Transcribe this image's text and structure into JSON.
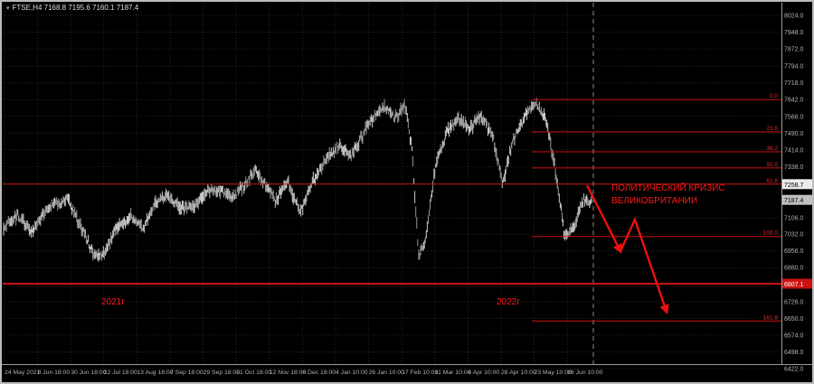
{
  "window": {
    "symbol_info": "FTSE,H4  7168.8 7195.6 7160.1 7187.4"
  },
  "icons": {
    "symbol_marker": "▾"
  },
  "annotations": {
    "year_left": "2021г",
    "year_right": "2022г",
    "crisis_line1": "ПОЛИТИЧЕСКИЙ КРИЗИС",
    "crisis_line2": "ВЕЛИКОБРИТАНИИ"
  },
  "colors": {
    "background": "#000000",
    "frame": "#b9bcbe",
    "grid": "#262626",
    "candle_light": "#e2e2e2",
    "candle_dark": "#a8a8a8",
    "axis_text": "#b2b2b2",
    "fib_line": "#cc1111",
    "fib_label": "#ee2222",
    "annotation_red": "#ff1a1a",
    "arrow": "#ee0f0f",
    "current_price_box": "#c0c0c0",
    "fib_price_box": "#ececec",
    "support_box": "#cc1111"
  },
  "chart_data": {
    "type": "candlestick",
    "symbol": "FTSE",
    "timeframe": "H4",
    "title": "FTSE,H4",
    "ohlc": {
      "open": 7168.8,
      "high": 7195.6,
      "low": 7160.1,
      "close": 7187.4
    },
    "current_price": 7187.4,
    "y_axis": {
      "min": 6422.0,
      "max": 8024.0,
      "labels": [
        "8024.0",
        "7948.0",
        "7872.0",
        "7794.0",
        "7718.0",
        "7642.0",
        "7566.0",
        "7490.0",
        "7414.0",
        "7338.0",
        "7262.0",
        "7106.0",
        "7032.0",
        "6956.0",
        "6880.0",
        "6726.0",
        "6650.0",
        "6574.0",
        "6498.0",
        "6422.0"
      ]
    },
    "x_axis": {
      "labels": [
        "24 May 2021",
        "8 Jun 18:00",
        "30 Jun 18:00",
        "22 Jul 18:00",
        "13 Aug 18:00",
        "7 Sep 18:00",
        "29 Sep 18:00",
        "21 Oct 18:00",
        "12 Nov 18:00",
        "6 Dec 18:00",
        "4 Jan 10:00",
        "26 Jan 10:00",
        "17 Feb 10:00",
        "11 Mar 10:00",
        "4 Apr 10:00",
        "28 Apr 10:00",
        "23 May 10:00",
        "16 Jun 10:00"
      ]
    },
    "price_path": [
      [
        0.0,
        7060
      ],
      [
        0.025,
        7115
      ],
      [
        0.048,
        7040
      ],
      [
        0.078,
        7160
      ],
      [
        0.109,
        7190
      ],
      [
        0.132,
        7060
      ],
      [
        0.155,
        6930
      ],
      [
        0.171,
        6945
      ],
      [
        0.194,
        7070
      ],
      [
        0.217,
        7110
      ],
      [
        0.237,
        7060
      ],
      [
        0.258,
        7170
      ],
      [
        0.278,
        7210
      ],
      [
        0.302,
        7150
      ],
      [
        0.325,
        7155
      ],
      [
        0.348,
        7230
      ],
      [
        0.371,
        7225
      ],
      [
        0.391,
        7200
      ],
      [
        0.412,
        7265
      ],
      [
        0.429,
        7320
      ],
      [
        0.448,
        7250
      ],
      [
        0.463,
        7180
      ],
      [
        0.483,
        7270
      ],
      [
        0.505,
        7130
      ],
      [
        0.525,
        7270
      ],
      [
        0.548,
        7370
      ],
      [
        0.571,
        7440
      ],
      [
        0.591,
        7390
      ],
      [
        0.609,
        7470
      ],
      [
        0.628,
        7560
      ],
      [
        0.648,
        7610
      ],
      [
        0.666,
        7560
      ],
      [
        0.683,
        7620
      ],
      [
        0.695,
        7400
      ],
      [
        0.706,
        6930
      ],
      [
        0.717,
        7000
      ],
      [
        0.735,
        7350
      ],
      [
        0.755,
        7500
      ],
      [
        0.775,
        7560
      ],
      [
        0.794,
        7510
      ],
      [
        0.812,
        7570
      ],
      [
        0.832,
        7480
      ],
      [
        0.849,
        7260
      ],
      [
        0.868,
        7470
      ],
      [
        0.886,
        7560
      ],
      [
        0.905,
        7630
      ],
      [
        0.922,
        7560
      ],
      [
        0.938,
        7330
      ],
      [
        0.954,
        7030
      ],
      [
        0.969,
        7060
      ],
      [
        0.985,
        7180
      ],
      [
        1.0,
        7187
      ]
    ],
    "fibonacci": {
      "levels": [
        {
          "pct": "0.0",
          "price": 7642.3
        },
        {
          "pct": "23.6",
          "price": 7495.8
        },
        {
          "pct": "38.2",
          "price": 7405.2
        },
        {
          "pct": "50.0",
          "price": 7332.0
        },
        {
          "pct": "61.8",
          "price": 7258.7,
          "full_width": true,
          "boxed": true
        },
        {
          "pct": "100.0",
          "price": 7021.6
        },
        {
          "pct": "161.8",
          "price": 6638.0
        }
      ]
    },
    "support_line": {
      "price": 6807.1
    },
    "forecast_arrows": [
      {
        "points": [
          [
            649,
            205
          ],
          [
            686,
            278
          ]
        ]
      },
      {
        "points": [
          [
            686,
            278
          ],
          [
            702,
            243
          ],
          [
            737,
            345
          ]
        ]
      }
    ]
  }
}
